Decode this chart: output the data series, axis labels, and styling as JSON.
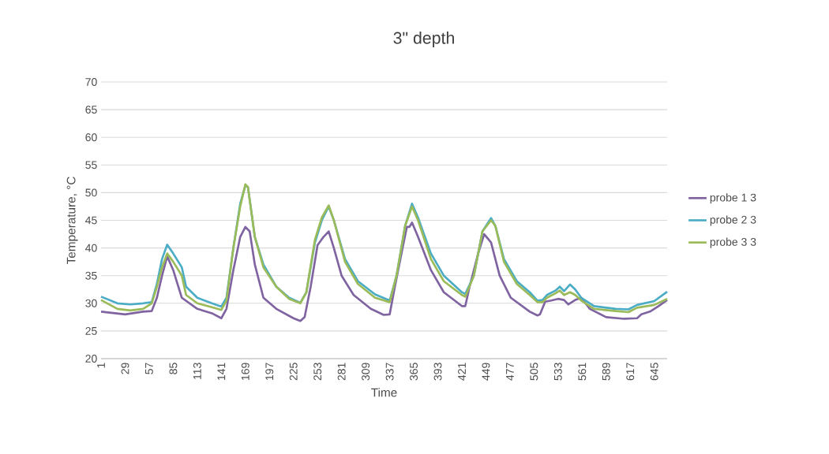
{
  "chart_data": {
    "type": "line",
    "title": "3\" depth",
    "xlabel": "Time",
    "ylabel": "Temperature, °C",
    "xlim": [
      1,
      660
    ],
    "xticks": [
      1,
      29,
      57,
      85,
      113,
      141,
      169,
      197,
      225,
      253,
      281,
      309,
      337,
      365,
      393,
      421,
      449,
      477,
      505,
      533,
      561,
      589,
      617,
      645
    ],
    "ylim": [
      20,
      70
    ],
    "yticks": [
      20,
      25,
      30,
      35,
      40,
      45,
      50,
      55,
      60,
      65,
      70
    ],
    "grid": "y",
    "legend": "right",
    "marker": "none",
    "line_style": "solid",
    "series": [
      {
        "name": "probe 1 3",
        "color": "#8064a2",
        "x": [
          1,
          29,
          50,
          60,
          66,
          72,
          78,
          85,
          95,
          113,
          130,
          141,
          147,
          155,
          163,
          169,
          174,
          180,
          190,
          205,
          225,
          233,
          238,
          245,
          253,
          260,
          266,
          272,
          281,
          295,
          315,
          330,
          337,
          343,
          352,
          357,
          360,
          363,
          370,
          385,
          400,
          421,
          425,
          430,
          440,
          447,
          455,
          465,
          478,
          500,
          509,
          512,
          518,
          525,
          533,
          540,
          545,
          553,
          560,
          570,
          589,
          610,
          625,
          630,
          640,
          650,
          660
        ],
        "values": [
          28.5,
          28.0,
          28.5,
          28.6,
          31,
          35,
          38.5,
          36,
          31,
          29,
          28.2,
          27.3,
          29,
          36,
          42,
          43.8,
          43,
          37,
          31,
          29,
          27.3,
          26.8,
          27.5,
          33,
          40.5,
          42,
          43,
          40,
          35,
          31.5,
          29,
          27.9,
          28,
          33,
          40,
          43.8,
          43.8,
          44.6,
          42,
          36,
          32,
          29.5,
          29.5,
          33,
          39,
          42.5,
          41,
          35,
          31,
          28.5,
          27.8,
          28,
          30.3,
          30.5,
          30.8,
          30.6,
          29.8,
          30.6,
          31,
          29,
          27.5,
          27.2,
          27.3,
          28.0,
          28.5,
          29.5,
          30.6
        ]
      },
      {
        "name": "probe 2 3",
        "color": "#4bacc6",
        "x": [
          1,
          20,
          35,
          50,
          60,
          66,
          72,
          78,
          85,
          95,
          100,
          113,
          130,
          141,
          147,
          155,
          163,
          169,
          172,
          180,
          190,
          205,
          220,
          233,
          240,
          250,
          258,
          266,
          272,
          285,
          300,
          320,
          337,
          345,
          355,
          363,
          370,
          385,
          400,
          421,
          425,
          435,
          445,
          455,
          460,
          470,
          485,
          500,
          509,
          515,
          520,
          530,
          535,
          540,
          547,
          553,
          560,
          575,
          600,
          615,
          625,
          645,
          660
        ],
        "values": [
          31.2,
          30,
          29.8,
          30,
          30.2,
          33.5,
          38,
          40.6,
          39,
          36.5,
          33,
          31,
          30,
          29.4,
          31,
          40,
          48,
          51.3,
          51,
          42,
          37,
          33,
          31,
          30.1,
          32,
          41,
          45,
          47.5,
          45,
          38,
          34,
          31.6,
          30.5,
          35,
          44,
          48,
          45.5,
          39,
          35,
          32,
          31.7,
          35,
          43,
          45.4,
          44,
          38,
          34,
          32,
          30.5,
          30.6,
          31.5,
          32.3,
          33,
          32.2,
          33.4,
          32.5,
          31,
          29.5,
          29,
          28.9,
          29.7,
          30.4,
          32.1
        ]
      },
      {
        "name": "probe 3 3",
        "color": "#9bbb59",
        "x": [
          1,
          20,
          35,
          50,
          60,
          66,
          72,
          78,
          85,
          95,
          100,
          113,
          130,
          141,
          147,
          155,
          163,
          169,
          172,
          180,
          190,
          205,
          220,
          233,
          240,
          250,
          258,
          266,
          272,
          285,
          300,
          320,
          337,
          345,
          355,
          363,
          370,
          385,
          400,
          421,
          425,
          435,
          445,
          455,
          460,
          470,
          485,
          500,
          509,
          515,
          520,
          530,
          535,
          540,
          547,
          553,
          560,
          575,
          600,
          615,
          625,
          645,
          660
        ],
        "values": [
          30.6,
          29,
          28.7,
          29,
          30,
          33,
          36.5,
          39,
          37.5,
          35,
          31.5,
          30,
          29.3,
          28.8,
          30.5,
          40,
          47.5,
          51.5,
          51,
          42,
          36.5,
          33,
          30.8,
          30,
          32,
          41.5,
          45.5,
          47.7,
          45,
          37.5,
          33.5,
          31,
          30.2,
          35,
          44,
          47.5,
          45,
          38,
          34,
          31.5,
          31.2,
          35,
          43,
          45,
          44,
          37.5,
          33.5,
          31.5,
          30.2,
          30.2,
          31,
          31.8,
          32.3,
          31.5,
          32,
          31.5,
          30.5,
          29,
          28.6,
          28.4,
          29.2,
          29.7,
          30.8
        ]
      }
    ]
  }
}
